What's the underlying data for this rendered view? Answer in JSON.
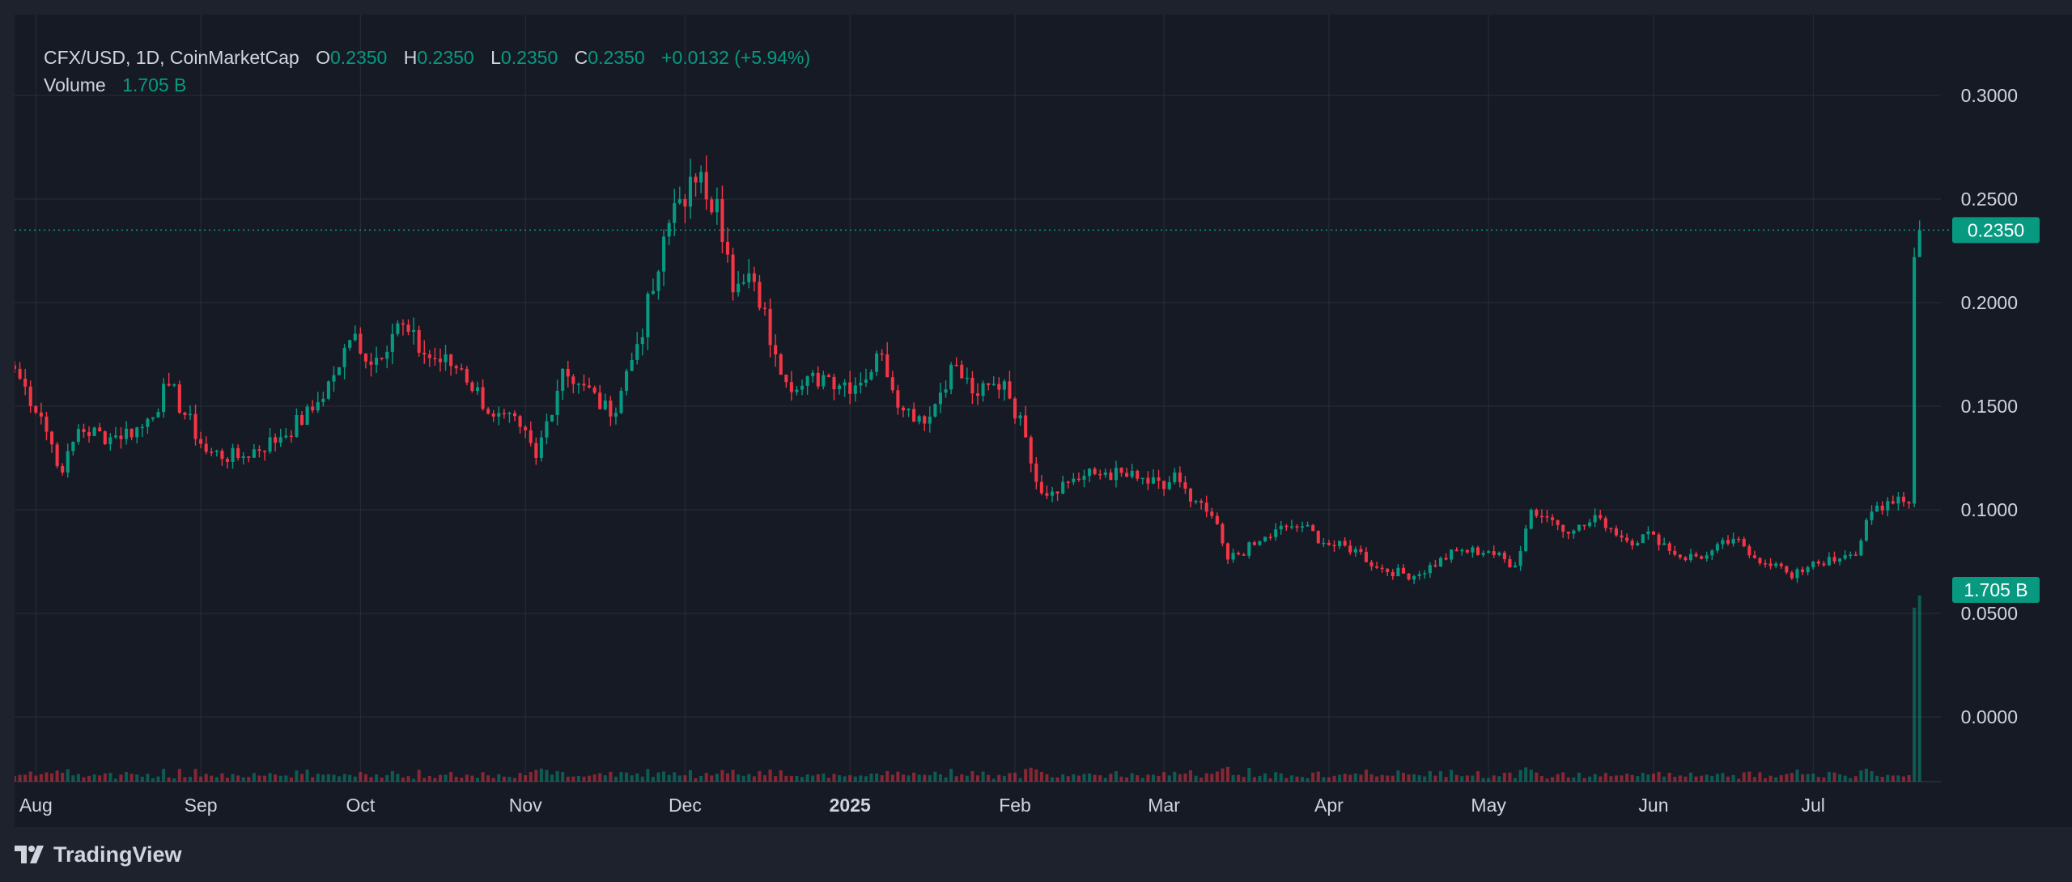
{
  "legend": {
    "symbol": "CFX/USD, 1D, CoinMarketCap",
    "o_label": "O",
    "o_value": "0.2350",
    "h_label": "H",
    "h_value": "0.2350",
    "l_label": "L",
    "l_value": "0.2350",
    "c_label": "C",
    "c_value": "0.2350",
    "change": "+0.0132 (+5.94%)",
    "volume_label": "Volume",
    "volume_value": "1.705 B"
  },
  "price_badge": "0.2350",
  "volume_badge": "1.705 B",
  "footer": {
    "brand": "TradingView"
  },
  "colors": {
    "up": "#089981",
    "down": "#f23645",
    "background": "#161a25",
    "grid": "#2a2e39",
    "text": "#d1d4dc",
    "badge": "#089981"
  },
  "chart_data": {
    "type": "candlestick",
    "title": "CFX/USD, 1D, CoinMarketCap",
    "y_axis_labels": [
      "0.3000",
      "0.2500",
      "0.2000",
      "0.1500",
      "0.1000",
      "0.0500",
      "0.0000"
    ],
    "y_ticks": [
      0.3,
      0.25,
      0.2,
      0.15,
      0.1,
      0.05,
      0.0
    ],
    "ylim": [
      0.0,
      0.3
    ],
    "x_axis_labels": [
      "Aug",
      "Sep",
      "Oct",
      "Nov",
      "Dec",
      "2025",
      "Feb",
      "Mar",
      "Apr",
      "May",
      "Jun",
      "Jul"
    ],
    "x_ticks": [
      "2024-08-01",
      "2024-09-01",
      "2024-10-01",
      "2024-11-01",
      "2024-12-01",
      "2025-01-01",
      "2025-02-01",
      "2025-03-01",
      "2025-04-01",
      "2025-05-01",
      "2025-06-01",
      "2025-07-01"
    ],
    "x_range": [
      "2024-07-28",
      "2025-07-25"
    ],
    "last_date": "2025-07-21",
    "last_price": 0.235,
    "last_volume": "1.705 B",
    "grid": true,
    "close_path": [
      [
        "2024-07-28",
        0.168
      ],
      [
        "2024-08-02",
        0.145
      ],
      [
        "2024-08-06",
        0.118
      ],
      [
        "2024-08-09",
        0.139
      ],
      [
        "2024-08-15",
        0.135
      ],
      [
        "2024-08-21",
        0.14
      ],
      [
        "2024-08-26",
        0.16
      ],
      [
        "2024-09-02",
        0.128
      ],
      [
        "2024-09-08",
        0.125
      ],
      [
        "2024-09-16",
        0.135
      ],
      [
        "2024-09-22",
        0.148
      ],
      [
        "2024-09-26",
        0.165
      ],
      [
        "2024-09-30",
        0.185
      ],
      [
        "2024-10-03",
        0.17
      ],
      [
        "2024-10-08",
        0.19
      ],
      [
        "2024-10-13",
        0.175
      ],
      [
        "2024-10-20",
        0.168
      ],
      [
        "2024-10-26",
        0.145
      ],
      [
        "2024-10-31",
        0.14
      ],
      [
        "2024-11-03",
        0.125
      ],
      [
        "2024-11-08",
        0.168
      ],
      [
        "2024-11-12",
        0.16
      ],
      [
        "2024-11-17",
        0.145
      ],
      [
        "2024-11-22",
        0.18
      ],
      [
        "2024-11-26",
        0.215
      ],
      [
        "2024-11-29",
        0.248
      ],
      [
        "2024-12-03",
        0.258
      ],
      [
        "2024-12-07",
        0.25
      ],
      [
        "2024-12-10",
        0.205
      ],
      [
        "2024-12-14",
        0.21
      ],
      [
        "2024-12-18",
        0.175
      ],
      [
        "2024-12-22",
        0.158
      ],
      [
        "2024-12-27",
        0.165
      ],
      [
        "2025-01-02",
        0.16
      ],
      [
        "2025-01-07",
        0.175
      ],
      [
        "2025-01-11",
        0.148
      ],
      [
        "2025-01-16",
        0.145
      ],
      [
        "2025-01-20",
        0.17
      ],
      [
        "2025-01-25",
        0.155
      ],
      [
        "2025-01-30",
        0.162
      ],
      [
        "2025-02-03",
        0.135
      ],
      [
        "2025-02-06",
        0.108
      ],
      [
        "2025-02-12",
        0.115
      ],
      [
        "2025-02-18",
        0.118
      ],
      [
        "2025-02-24",
        0.115
      ],
      [
        "2025-03-01",
        0.11
      ],
      [
        "2025-03-03",
        0.118
      ],
      [
        "2025-03-06",
        0.104
      ],
      [
        "2025-03-10",
        0.097
      ],
      [
        "2025-03-13",
        0.076
      ],
      [
        "2025-03-18",
        0.083
      ],
      [
        "2025-03-24",
        0.092
      ],
      [
        "2025-03-27",
        0.092
      ],
      [
        "2025-04-01",
        0.083
      ],
      [
        "2025-04-06",
        0.081
      ],
      [
        "2025-04-10",
        0.072
      ],
      [
        "2025-04-17",
        0.068
      ],
      [
        "2025-04-25",
        0.08
      ],
      [
        "2025-05-01",
        0.08
      ],
      [
        "2025-05-06",
        0.073
      ],
      [
        "2025-05-09",
        0.1
      ],
      [
        "2025-05-13",
        0.095
      ],
      [
        "2025-05-17",
        0.09
      ],
      [
        "2025-05-22",
        0.096
      ],
      [
        "2025-05-27",
        0.085
      ],
      [
        "2025-06-01",
        0.088
      ],
      [
        "2025-06-06",
        0.077
      ],
      [
        "2025-06-11",
        0.078
      ],
      [
        "2025-06-16",
        0.086
      ],
      [
        "2025-06-19",
        0.078
      ],
      [
        "2025-06-24",
        0.074
      ],
      [
        "2025-06-27",
        0.067
      ],
      [
        "2025-07-01",
        0.075
      ],
      [
        "2025-07-05",
        0.075
      ],
      [
        "2025-07-09",
        0.078
      ],
      [
        "2025-07-11",
        0.095
      ],
      [
        "2025-07-13",
        0.102
      ],
      [
        "2025-07-16",
        0.103
      ],
      [
        "2025-07-19",
        0.103
      ],
      [
        "2025-07-20",
        0.222
      ],
      [
        "2025-07-21",
        0.235
      ]
    ],
    "volume_spikes": [
      {
        "date": "2025-07-20",
        "value": "0.8x of latest"
      },
      {
        "date": "2025-07-21",
        "value": "1.705 B"
      }
    ]
  }
}
